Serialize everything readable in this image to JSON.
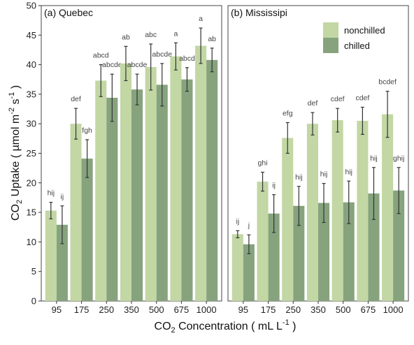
{
  "chart_data": {
    "type": "bar",
    "ylabel": "CO2 Uptake ( µmol m-2 s-1 )",
    "ylabel_parts": {
      "main": "CO",
      "sub": "2",
      "after": " Uptake ( µmol m",
      "sup1": "-2",
      "mid": " s",
      "sup2": "-1",
      "end": " )"
    },
    "xlabel": "CO2 Concentration ( mL L-1 )",
    "xlabel_parts": {
      "main": "CO",
      "sub": "2",
      "after": " Concentration ( mL L",
      "sup": "-1",
      "end": " )"
    },
    "categories": [
      "95",
      "175",
      "250",
      "350",
      "500",
      "675",
      "1000"
    ],
    "ylim": [
      0,
      50
    ],
    "yticks": [
      0,
      5,
      10,
      15,
      20,
      25,
      30,
      35,
      40,
      45,
      50
    ],
    "legend": {
      "position": "top-right (Mississipi panel)",
      "entries": [
        "nonchilled",
        "chilled"
      ]
    },
    "colors": {
      "nonchilled": "#c2d7a4",
      "chilled": "#86a37e",
      "error_bar": "#333333",
      "letters": "#444444"
    },
    "panels": [
      {
        "title": "(a) Quebec",
        "series": [
          {
            "name": "nonchilled",
            "values": [
              15.3,
              30.0,
              37.3,
              40.2,
              39.6,
              41.4,
              43.2
            ],
            "errors": [
              1.4,
              2.6,
              2.7,
              2.9,
              3.9,
              2.3,
              3.0
            ],
            "letters": [
              "hij",
              "def",
              "abcd",
              "ab",
              "abc",
              "a",
              "a"
            ]
          },
          {
            "name": "chilled",
            "values": [
              12.9,
              24.1,
              34.4,
              35.8,
              36.6,
              37.5,
              40.8
            ],
            "errors": [
              3.2,
              3.2,
              4.0,
              2.6,
              3.6,
              2.0,
              2.0
            ],
            "letters": [
              "ij",
              "fgh",
              "abcde",
              "abcde",
              "abcde",
              "abcd",
              "ab"
            ]
          }
        ]
      },
      {
        "title": "(b) Mississipi",
        "series": [
          {
            "name": "nonchilled",
            "values": [
              11.3,
              20.2,
              27.6,
              30.0,
              30.6,
              30.5,
              31.6
            ],
            "errors": [
              0.6,
              1.6,
              2.6,
              1.9,
              2.0,
              2.3,
              3.9
            ],
            "letters": [
              "ij",
              "ghi",
              "efg",
              "def",
              "cdef",
              "cdef",
              "bcdef"
            ]
          },
          {
            "name": "chilled",
            "values": [
              9.6,
              14.8,
              16.1,
              16.6,
              16.7,
              18.2,
              18.7
            ],
            "errors": [
              1.6,
              3.2,
              3.3,
              3.3,
              3.6,
              4.4,
              3.9
            ],
            "letters": [
              "j",
              "ij",
              "hij",
              "hij",
              "hij",
              "hij",
              "ghij"
            ]
          }
        ]
      }
    ]
  }
}
